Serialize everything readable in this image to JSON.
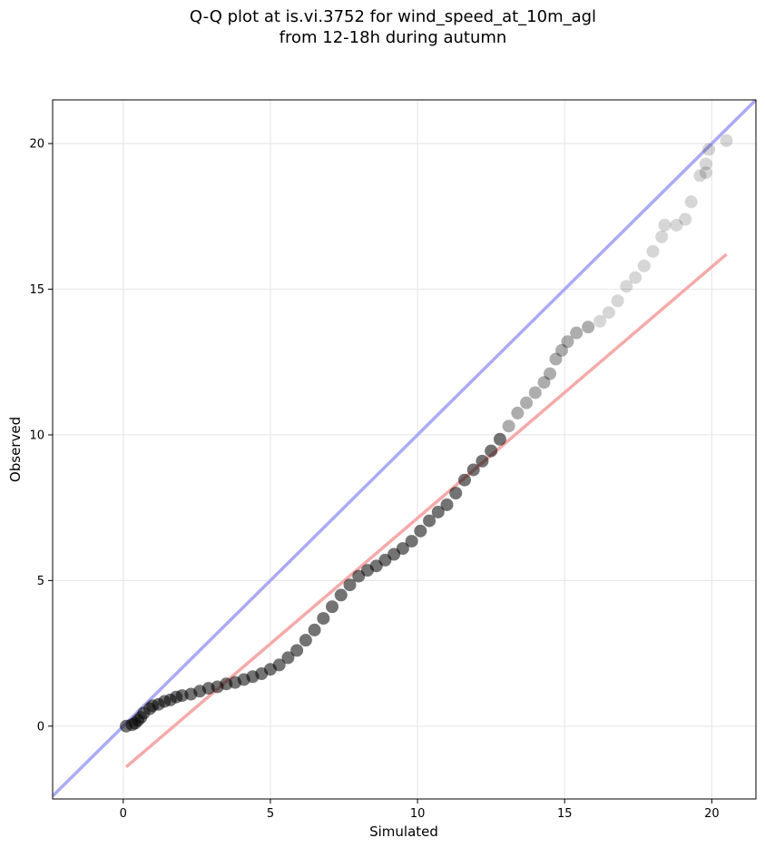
{
  "chart_data": {
    "type": "scatter",
    "title_line1": "Q-Q plot at is.vi.3752 for wind_speed_at_10m_agl",
    "title_line2": "from 12-18h during autumn",
    "xlabel": "Simulated",
    "ylabel": "Observed",
    "xlim": [
      -2.4,
      21.5
    ],
    "ylim": [
      -2.5,
      21.5
    ],
    "xticks": [
      0,
      5,
      10,
      15,
      20
    ],
    "yticks": [
      0,
      5,
      10,
      15,
      20
    ],
    "grid": true,
    "reference_line": {
      "name": "y = x",
      "color": "#aaaaf5",
      "from": [
        -2.4,
        -2.4
      ],
      "to": [
        21.5,
        21.5
      ]
    },
    "fit_line": {
      "color": "#f5aaaa",
      "from": [
        0.1,
        -1.4
      ],
      "to": [
        20.5,
        16.2
      ]
    },
    "point_color": "#000000",
    "points": [
      [
        0.1,
        0.0
      ],
      [
        0.3,
        0.05
      ],
      [
        0.4,
        0.1
      ],
      [
        0.5,
        0.2
      ],
      [
        0.6,
        0.3
      ],
      [
        0.7,
        0.45
      ],
      [
        0.9,
        0.6
      ],
      [
        1.0,
        0.7
      ],
      [
        1.2,
        0.75
      ],
      [
        1.4,
        0.85
      ],
      [
        1.6,
        0.9
      ],
      [
        1.8,
        1.0
      ],
      [
        2.0,
        1.05
      ],
      [
        2.3,
        1.1
      ],
      [
        2.6,
        1.2
      ],
      [
        2.9,
        1.3
      ],
      [
        3.2,
        1.35
      ],
      [
        3.5,
        1.45
      ],
      [
        3.8,
        1.5
      ],
      [
        4.1,
        1.6
      ],
      [
        4.4,
        1.7
      ],
      [
        4.7,
        1.8
      ],
      [
        5.0,
        1.95
      ],
      [
        5.3,
        2.1
      ],
      [
        5.6,
        2.35
      ],
      [
        5.9,
        2.6
      ],
      [
        6.2,
        2.95
      ],
      [
        6.5,
        3.3
      ],
      [
        6.8,
        3.7
      ],
      [
        7.1,
        4.1
      ],
      [
        7.4,
        4.5
      ],
      [
        7.7,
        4.85
      ],
      [
        8.0,
        5.15
      ],
      [
        8.3,
        5.35
      ],
      [
        8.6,
        5.5
      ],
      [
        8.9,
        5.7
      ],
      [
        9.2,
        5.9
      ],
      [
        9.5,
        6.1
      ],
      [
        9.8,
        6.35
      ],
      [
        10.1,
        6.7
      ],
      [
        10.4,
        7.05
      ],
      [
        10.7,
        7.35
      ],
      [
        11.0,
        7.6
      ],
      [
        11.3,
        8.0
      ],
      [
        11.6,
        8.45
      ],
      [
        11.9,
        8.8
      ],
      [
        12.2,
        9.1
      ],
      [
        12.5,
        9.45
      ],
      [
        12.8,
        9.85
      ],
      [
        13.1,
        10.3
      ],
      [
        13.4,
        10.75
      ],
      [
        13.7,
        11.1
      ],
      [
        14.0,
        11.45
      ],
      [
        14.3,
        11.8
      ],
      [
        14.5,
        12.1
      ],
      [
        14.7,
        12.6
      ],
      [
        14.9,
        12.9
      ],
      [
        15.1,
        13.2
      ],
      [
        15.4,
        13.5
      ],
      [
        15.8,
        13.7
      ],
      [
        16.2,
        13.9
      ],
      [
        16.5,
        14.2
      ],
      [
        16.8,
        14.6
      ],
      [
        17.1,
        15.1
      ],
      [
        17.4,
        15.4
      ],
      [
        17.7,
        15.8
      ],
      [
        18.0,
        16.3
      ],
      [
        18.3,
        16.8
      ],
      [
        18.4,
        17.2
      ],
      [
        18.8,
        17.2
      ],
      [
        19.1,
        17.4
      ],
      [
        19.3,
        18.0
      ],
      [
        19.6,
        18.9
      ],
      [
        19.8,
        19.0
      ],
      [
        19.8,
        19.3
      ],
      [
        19.9,
        19.8
      ],
      [
        20.5,
        20.1
      ]
    ]
  }
}
